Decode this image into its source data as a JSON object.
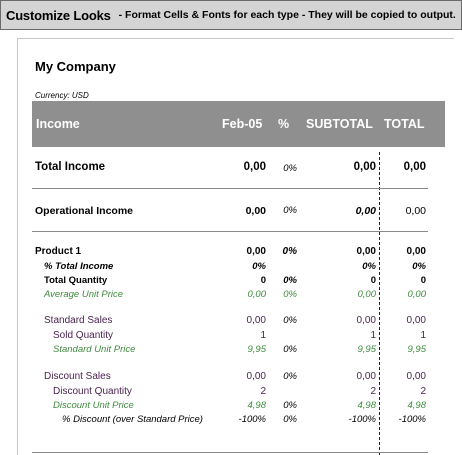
{
  "banner": {
    "title": "Customize Looks",
    "subtitle": "- Format Cells & Fonts for each type - They will be copied to output."
  },
  "report": {
    "company": "My Company",
    "currency": "Currency: USD",
    "header": {
      "section": "Income",
      "col_period": "Feb-05",
      "col_pct": "%",
      "col_subtotal": "SUBTOTAL",
      "col_total": "TOTAL"
    },
    "total_income": {
      "label": "Total Income",
      "feb": "0,00",
      "pct": "0%",
      "subtotal": "0,00",
      "total": "0,00"
    },
    "operational_income": {
      "label": "Operational Income",
      "feb": "0,00",
      "pct": "0%",
      "subtotal": "0,00",
      "total": "0,00"
    },
    "product": {
      "label": "Product 1",
      "feb": "0,00",
      "pct": "0%",
      "subtotal": "0,00",
      "total": "0,00",
      "pct_total_income": {
        "label": "% Total Income",
        "feb": "0%",
        "subtotal": "0%",
        "total": "0%"
      },
      "total_quantity": {
        "label": "Total Quantity",
        "feb": "0",
        "pct": "0%",
        "subtotal": "0",
        "total": "0"
      },
      "avg_unit_price": {
        "label": "Average Unit Price",
        "feb": "0,00",
        "pct": "0%",
        "subtotal": "0,00",
        "total": "0,00"
      }
    },
    "standard_sales": {
      "label": "Standard Sales",
      "feb": "0,00",
      "pct": "0%",
      "subtotal": "0,00",
      "total": "0,00",
      "sold_quantity": {
        "label": "Sold Quantity",
        "feb": "1",
        "subtotal": "1",
        "total": "1"
      },
      "std_unit_price": {
        "label": "Standard Unit Price",
        "feb": "9,95",
        "pct": "0%",
        "subtotal": "9,95",
        "total": "9,95"
      }
    },
    "discount_sales": {
      "label": "Discount Sales",
      "feb": "0,00",
      "pct": "0%",
      "subtotal": "0,00",
      "total": "0,00",
      "discount_quantity": {
        "label": "Discount Quantity",
        "feb": "2",
        "subtotal": "2",
        "total": "2"
      },
      "discount_unit_price": {
        "label": "Discount Unit Price",
        "feb": "4,98",
        "pct": "0%",
        "subtotal": "4,98",
        "total": "4,98"
      },
      "pct_discount": {
        "label": "% Discount (over Standard Price)",
        "feb": "-100%",
        "pct": "0%",
        "subtotal": "-100%",
        "total": "-100%"
      }
    },
    "colors": {
      "header_band": "#8f8f8f",
      "green_text": "#3f8a3f",
      "purple_text": "#4b2350",
      "banner_bg": "#d4d4d4"
    }
  }
}
